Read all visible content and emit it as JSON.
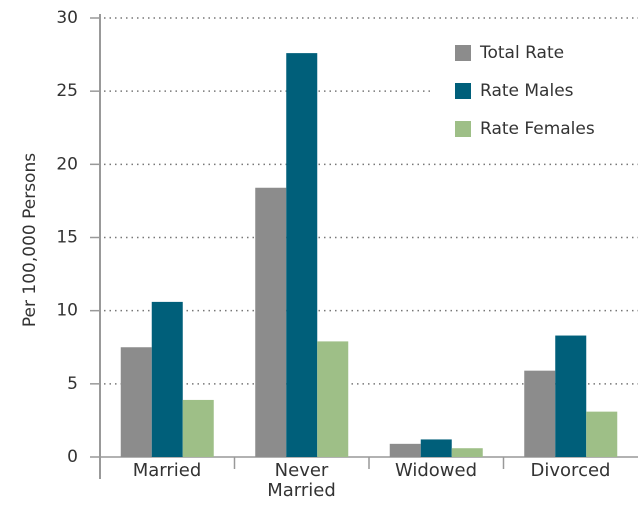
{
  "chart_data": {
    "type": "bar",
    "y_label": "Per 100,000 Persons",
    "categories": [
      "Married",
      "Never\nMarried",
      "Widowed",
      "Divorced"
    ],
    "series": [
      {
        "name": "Total Rate",
        "color": "#8c8c8c",
        "values": [
          7.5,
          18.4,
          0.9,
          5.9
        ]
      },
      {
        "name": "Rate Males",
        "color": "#005f7a",
        "values": [
          10.6,
          27.6,
          1.2,
          8.3
        ]
      },
      {
        "name": "Rate Females",
        "color": "#9ebf87",
        "values": [
          3.9,
          7.9,
          0.6,
          3.1
        ]
      }
    ],
    "ylim": [
      0,
      30
    ],
    "yticks": [
      0,
      5,
      10,
      15,
      20,
      25,
      30
    ],
    "grid": true,
    "legend": "upper right"
  }
}
